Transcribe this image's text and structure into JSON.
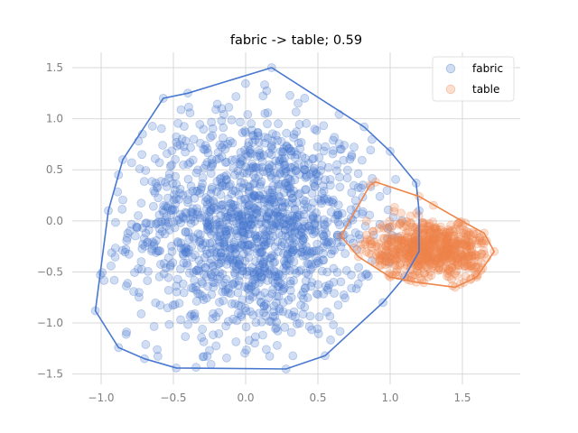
{
  "chart_data": {
    "type": "scatter",
    "title": "fabric -> table; 0.59",
    "xlabel": "",
    "ylabel": "",
    "xlim": [
      -1.2,
      1.9
    ],
    "ylim": [
      -1.6,
      1.65
    ],
    "xticks": [
      -1.0,
      -0.5,
      0.0,
      0.5,
      1.0,
      1.5
    ],
    "xtick_labels": [
      "−1.0",
      "−0.5",
      "0.0",
      "0.5",
      "1.0",
      "1.5"
    ],
    "yticks": [
      -1.5,
      -1.0,
      -0.5,
      0.0,
      0.5,
      1.0,
      1.5
    ],
    "ytick_labels": [
      "−1.5",
      "−1.0",
      "−0.5",
      "0.0",
      "0.5",
      "1.0",
      "1.5"
    ],
    "grid": true,
    "legend_position": "top-right",
    "marker_alpha": 0.25,
    "series": [
      {
        "name": "fabric",
        "color": "#4878cf",
        "hull": [
          [
            -1.04,
            -0.88
          ],
          [
            -0.88,
            -1.24
          ],
          [
            -0.7,
            -1.35
          ],
          [
            -0.48,
            -1.44
          ],
          [
            0.28,
            -1.45
          ],
          [
            0.55,
            -1.32
          ],
          [
            0.95,
            -0.8
          ],
          [
            1.1,
            -0.55
          ],
          [
            1.2,
            -0.3
          ],
          [
            1.2,
            0.1
          ],
          [
            1.18,
            0.37
          ],
          [
            1.0,
            0.68
          ],
          [
            0.82,
            0.92
          ],
          [
            0.18,
            1.5
          ],
          [
            -0.4,
            1.25
          ],
          [
            -0.57,
            1.2
          ],
          [
            -0.85,
            0.6
          ],
          [
            -0.88,
            0.45
          ],
          [
            -0.95,
            0.1
          ]
        ],
        "center": [
          0.05,
          -0.05
        ],
        "spread": [
          0.42,
          0.55
        ],
        "count": 1400
      },
      {
        "name": "table",
        "color": "#ee854a",
        "hull": [
          [
            0.66,
            -0.15
          ],
          [
            0.78,
            -0.35
          ],
          [
            1.0,
            -0.55
          ],
          [
            1.18,
            -0.6
          ],
          [
            1.45,
            -0.65
          ],
          [
            1.6,
            -0.55
          ],
          [
            1.72,
            -0.3
          ],
          [
            1.65,
            -0.12
          ],
          [
            1.52,
            -0.02
          ],
          [
            1.2,
            0.24
          ],
          [
            0.9,
            0.38
          ],
          [
            0.86,
            0.35
          ]
        ],
        "center": [
          1.28,
          -0.28
        ],
        "spread": [
          0.22,
          0.15
        ],
        "count": 650
      }
    ]
  }
}
